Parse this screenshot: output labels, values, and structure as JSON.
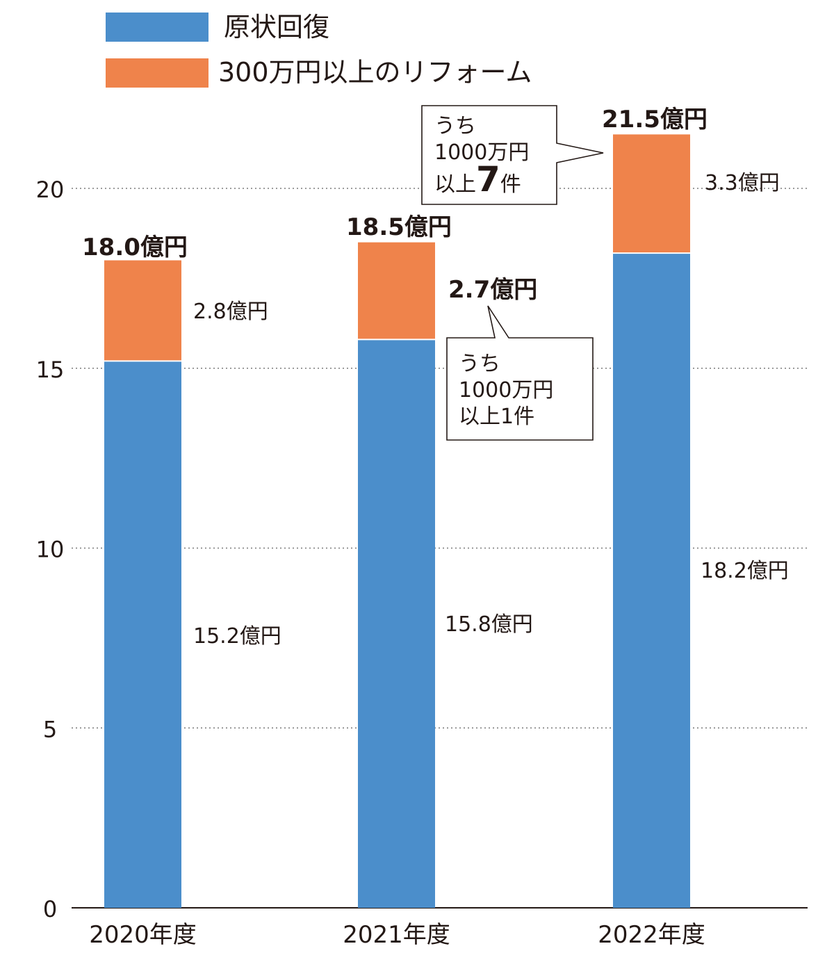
{
  "chart_data": {
    "type": "bar",
    "stacked": true,
    "categories": [
      "2020年度",
      "2021年度",
      "2022年度"
    ],
    "series": [
      {
        "name": "原状回復",
        "color": "#4b8ecb",
        "values": [
          15.2,
          15.8,
          18.2
        ],
        "labels": [
          "15.2億円",
          "15.8億円",
          "18.2億円"
        ]
      },
      {
        "name": "300万円以上のリフォーム",
        "color": "#ef834b",
        "values": [
          2.8,
          2.7,
          3.3
        ],
        "labels": [
          "2.8億円",
          "2.7億円",
          "3.3億円"
        ]
      }
    ],
    "totals": [
      18.0,
      18.5,
      21.5
    ],
    "total_labels": [
      "18.0億円",
      "18.5億円",
      "21.5億円"
    ],
    "ylim": [
      0,
      22
    ],
    "yticks": [
      0,
      5,
      10,
      15,
      20
    ],
    "grid": true,
    "legend": "top-left",
    "annotations": [
      {
        "target": "2021年度",
        "line1": "うち",
        "line2": "1000万円",
        "line3_prefix": "以上",
        "count": "1",
        "line3_suffix": "件"
      },
      {
        "target": "2022年度",
        "line1": "うち",
        "line2": "1000万円",
        "line3_prefix": "以上",
        "count": "7",
        "line3_suffix": "件"
      }
    ]
  }
}
